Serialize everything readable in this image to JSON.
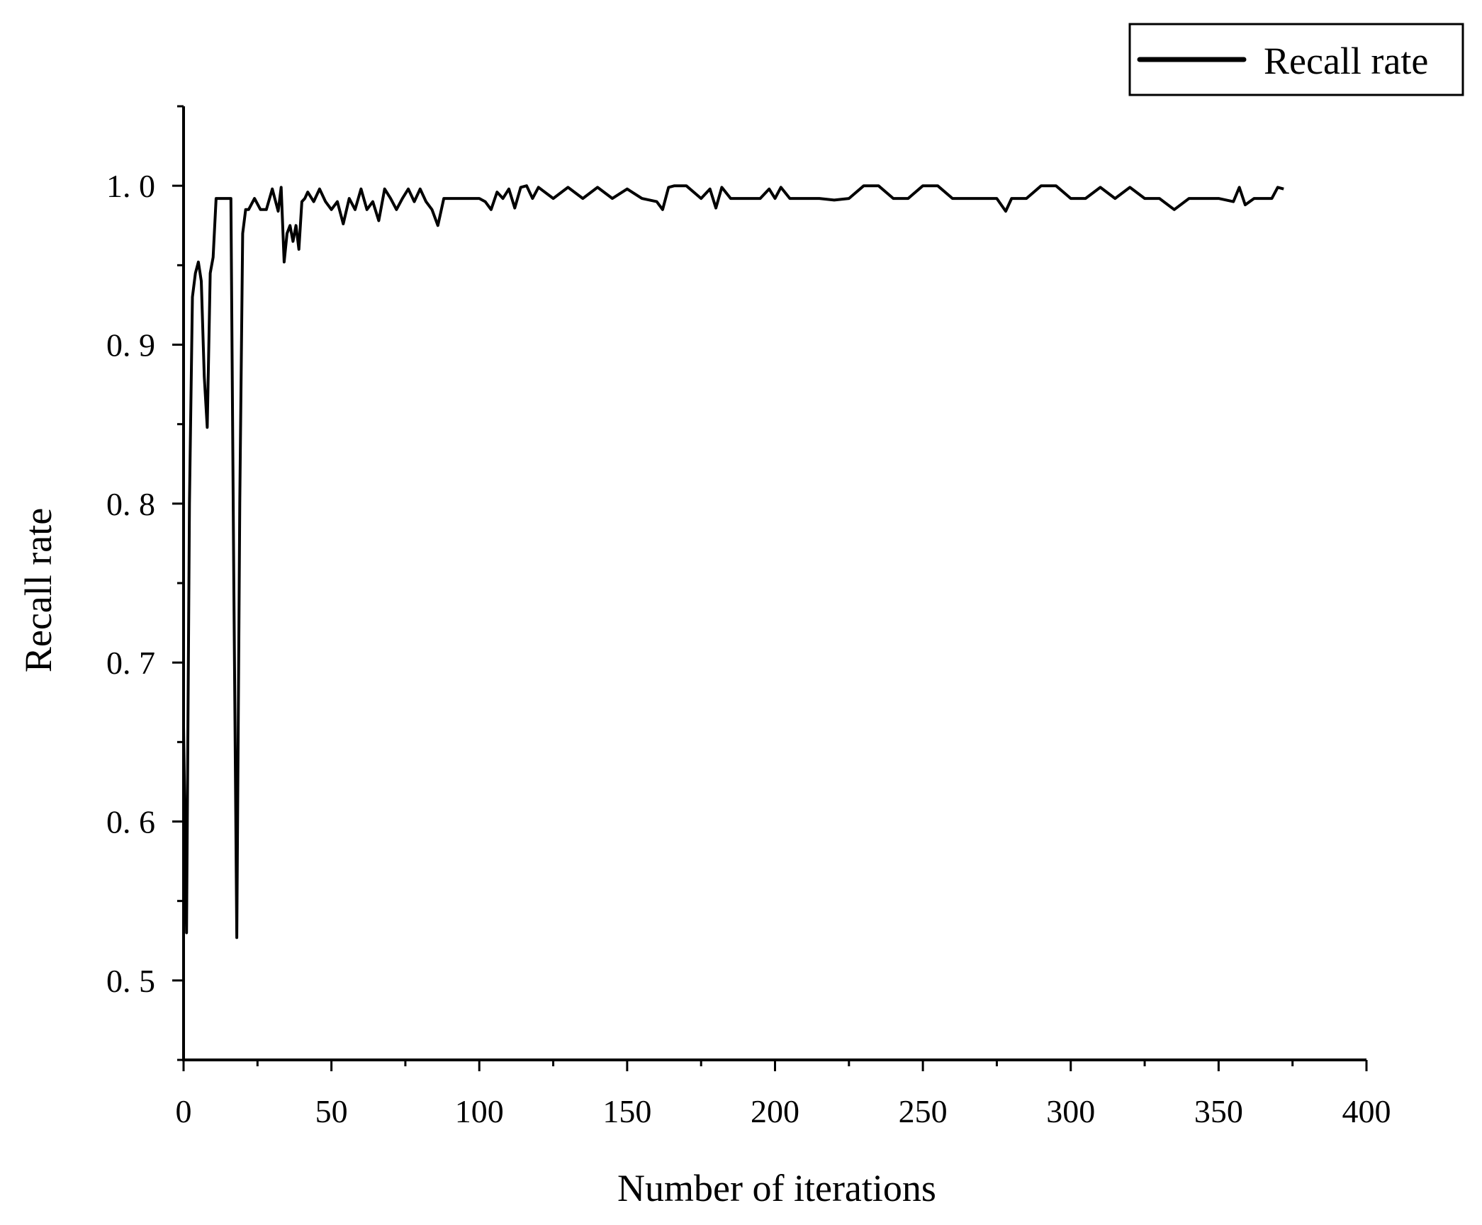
{
  "chart_data": {
    "type": "line",
    "xlabel": "Number of iterations",
    "ylabel": "Recall rate",
    "xlim": [
      0,
      400
    ],
    "ylim": [
      0.45,
      1.05
    ],
    "x_ticks": [
      0,
      50,
      100,
      150,
      200,
      250,
      300,
      350,
      400
    ],
    "x_tick_labels": [
      "0",
      "50",
      "100",
      "150",
      "200",
      "250",
      "300",
      "350",
      "400"
    ],
    "y_ticks": [
      0.5,
      0.6,
      0.7,
      0.8,
      0.9,
      1.0
    ],
    "y_tick_labels": [
      "0. 5",
      "0. 6",
      "0. 7",
      "0. 8",
      "0. 9",
      "1. 0"
    ],
    "grid": false,
    "legend": {
      "position": "top-right",
      "entries": [
        "Recall rate"
      ]
    },
    "colors": {
      "line": "#000000",
      "axis": "#000000",
      "background": "#ffffff"
    },
    "series": [
      {
        "name": "Recall rate",
        "x": [
          0,
          1,
          2,
          3,
          4,
          5,
          6,
          7,
          8,
          9,
          10,
          11,
          12,
          13,
          14,
          15,
          16,
          17,
          18,
          19,
          20,
          21,
          22,
          24,
          26,
          28,
          30,
          32,
          33,
          34,
          35,
          36,
          37,
          38,
          39,
          40,
          41,
          42,
          44,
          46,
          48,
          50,
          52,
          54,
          56,
          58,
          60,
          62,
          64,
          66,
          68,
          70,
          72,
          74,
          76,
          78,
          80,
          82,
          84,
          86,
          88,
          90,
          95,
          100,
          102,
          104,
          106,
          108,
          110,
          112,
          114,
          116,
          118,
          120,
          125,
          130,
          135,
          140,
          145,
          150,
          155,
          160,
          162,
          164,
          166,
          170,
          175,
          178,
          180,
          182,
          185,
          190,
          195,
          198,
          200,
          202,
          205,
          210,
          215,
          220,
          225,
          230,
          235,
          240,
          245,
          250,
          255,
          260,
          265,
          270,
          275,
          278,
          280,
          285,
          290,
          295,
          300,
          305,
          310,
          315,
          320,
          325,
          330,
          335,
          340,
          345,
          350,
          355,
          357,
          359,
          362,
          365,
          368,
          370,
          372
        ],
        "y": [
          0.66,
          0.53,
          0.8,
          0.93,
          0.945,
          0.952,
          0.94,
          0.88,
          0.848,
          0.945,
          0.955,
          0.992,
          0.992,
          0.992,
          0.992,
          0.992,
          0.992,
          0.75,
          0.527,
          0.8,
          0.97,
          0.985,
          0.985,
          0.992,
          0.985,
          0.985,
          0.998,
          0.984,
          0.999,
          0.952,
          0.97,
          0.975,
          0.965,
          0.975,
          0.96,
          0.99,
          0.992,
          0.996,
          0.99,
          0.998,
          0.99,
          0.985,
          0.99,
          0.976,
          0.992,
          0.985,
          0.998,
          0.985,
          0.99,
          0.978,
          0.998,
          0.992,
          0.985,
          0.992,
          0.998,
          0.99,
          0.998,
          0.99,
          0.985,
          0.975,
          0.992,
          0.992,
          0.992,
          0.992,
          0.99,
          0.985,
          0.996,
          0.992,
          0.998,
          0.986,
          0.999,
          1.0,
          0.992,
          0.999,
          0.992,
          0.999,
          0.992,
          0.999,
          0.992,
          0.998,
          0.992,
          0.99,
          0.985,
          0.999,
          1.0,
          1.0,
          0.992,
          0.998,
          0.986,
          0.999,
          0.992,
          0.992,
          0.992,
          0.998,
          0.992,
          0.999,
          0.992,
          0.992,
          0.992,
          0.991,
          0.992,
          1.0,
          1.0,
          0.992,
          0.992,
          1.0,
          1.0,
          0.992,
          0.992,
          0.992,
          0.992,
          0.984,
          0.992,
          0.992,
          1.0,
          1.0,
          0.992,
          0.992,
          0.999,
          0.992,
          0.999,
          0.992,
          0.992,
          0.985,
          0.992,
          0.992,
          0.992,
          0.99,
          0.999,
          0.988,
          0.992,
          0.992,
          0.992,
          0.999,
          0.998
        ]
      }
    ]
  }
}
